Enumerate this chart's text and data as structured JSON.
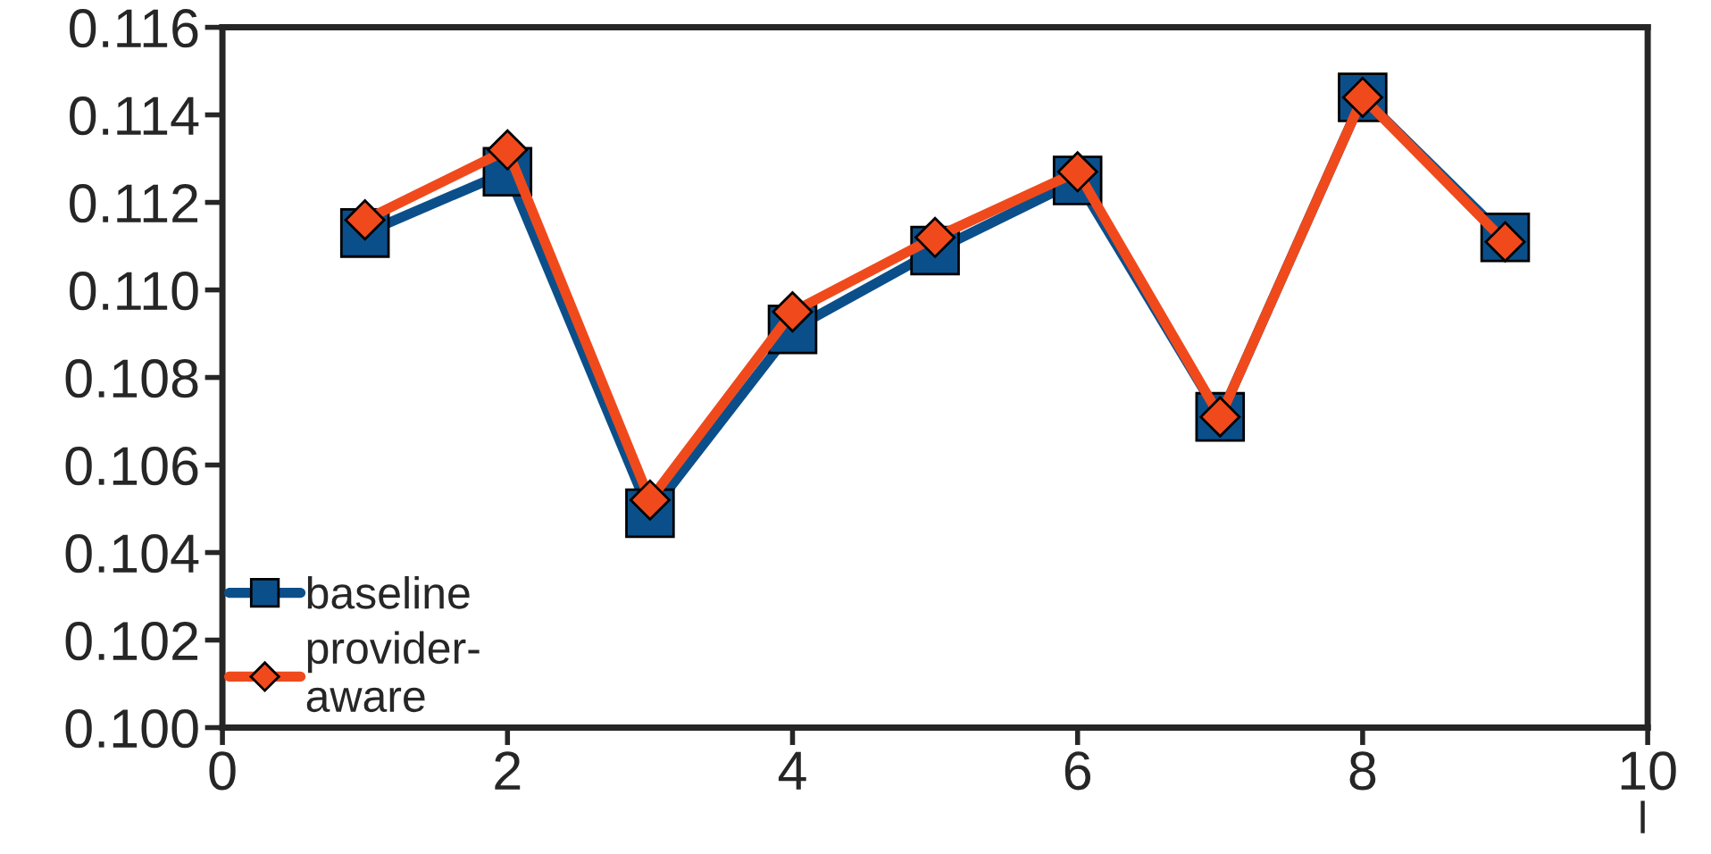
{
  "chart_data": {
    "type": "line",
    "xlabel": "l",
    "x": [
      1,
      2,
      3,
      4,
      5,
      6,
      7,
      8,
      9
    ],
    "series": [
      {
        "name": "baseline",
        "color": "#0b4f8a",
        "marker": "square",
        "values": [
          0.1113,
          0.1127,
          0.1049,
          0.1091,
          0.1109,
          0.1125,
          0.1071,
          0.1144,
          0.1112
        ]
      },
      {
        "name": "provider-\naware",
        "color": "#f04a1c",
        "marker": "diamond",
        "values": [
          0.1116,
          0.1132,
          0.1052,
          0.1095,
          0.1112,
          0.1127,
          0.1071,
          0.1144,
          0.1111
        ]
      }
    ],
    "xlim": [
      0,
      10
    ],
    "xticks": [
      0,
      2,
      4,
      6,
      8,
      10
    ],
    "ylim": [
      0.1,
      0.116
    ],
    "yticks": [
      {
        "value": 0.1,
        "label": "0.100"
      },
      {
        "value": 0.102,
        "label": "0.102"
      },
      {
        "value": 0.104,
        "label": "0.104"
      },
      {
        "value": 0.106,
        "label": "0.106"
      },
      {
        "value": 0.108,
        "label": "0.108"
      },
      {
        "value": 0.11,
        "label": "0.110"
      },
      {
        "value": 0.112,
        "label": "0.112"
      },
      {
        "value": 0.114,
        "label": "0.114"
      },
      {
        "value": 0.116,
        "label": "0.116"
      }
    ],
    "grid": false,
    "legend": "bottom left",
    "line_style": "solid"
  }
}
